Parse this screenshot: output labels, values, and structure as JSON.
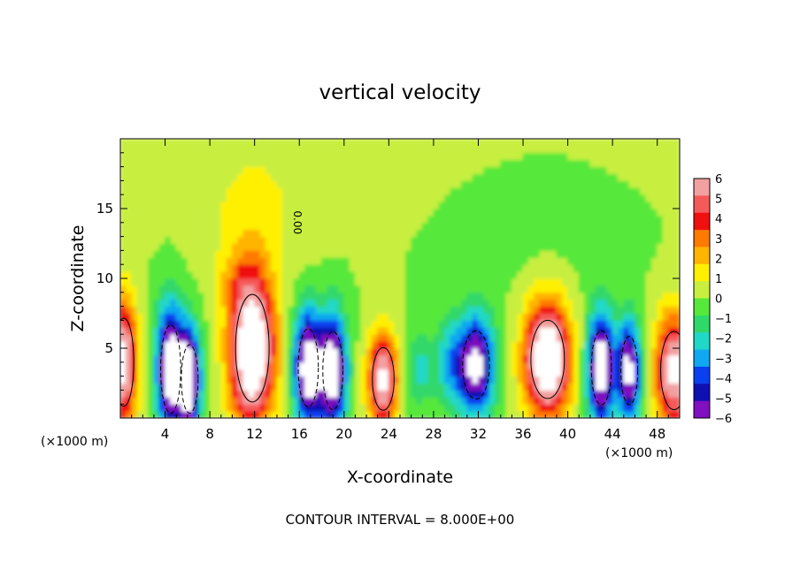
{
  "chart_data": {
    "type": "heatmap",
    "title": "vertical velocity",
    "xlabel": "X-coordinate",
    "ylabel": "Z-coordinate",
    "x_unit_left": "(×1000 m)",
    "x_unit_right": "(×1000 m)",
    "xlim": [
      0,
      50
    ],
    "ylim": [
      0,
      20
    ],
    "xticks": [
      "4",
      "8",
      "12",
      "16",
      "20",
      "24",
      "28",
      "32",
      "36",
      "40",
      "44",
      "48"
    ],
    "xtick_values": [
      4,
      8,
      12,
      16,
      20,
      24,
      28,
      32,
      36,
      40,
      44,
      48
    ],
    "yticks": [
      "5",
      "10",
      "15"
    ],
    "ytick_values": [
      5,
      10,
      15
    ],
    "colorbar": {
      "ticks": [
        "6",
        "5",
        "4",
        "3",
        "2",
        "1",
        "0",
        "−1",
        "−2",
        "−3",
        "−4",
        "−5",
        "−6"
      ],
      "values": [
        6,
        5,
        4,
        3,
        2,
        1,
        0,
        -1,
        -2,
        -3,
        -4,
        -5,
        -6
      ],
      "colors": [
        "#f2a0a0",
        "#f55a5a",
        "#f01010",
        "#ff7a00",
        "#ffb400",
        "#fff000",
        "#c8ef40",
        "#56e83a",
        "#30d86a",
        "#20d8c8",
        "#10a8f0",
        "#0a40f0",
        "#1010b0",
        "#8010c0"
      ]
    },
    "cells": [
      {
        "x": 0.3,
        "z": 4,
        "sx": 1.2,
        "sz": 4.5,
        "w": 7
      },
      {
        "x": 4.5,
        "z": 3.5,
        "sx": 1.2,
        "sz": 4.5,
        "w": -8
      },
      {
        "x": 6.2,
        "z": 2.8,
        "sx": 1.0,
        "sz": 3.5,
        "w": -8
      },
      {
        "x": 11.8,
        "z": 5.0,
        "sx": 2.0,
        "sz": 5.5,
        "w": 9
      },
      {
        "x": 16.8,
        "z": 3.6,
        "sx": 1.2,
        "sz": 4.0,
        "w": -8
      },
      {
        "x": 19.0,
        "z": 3.4,
        "sx": 1.2,
        "sz": 4.0,
        "w": -8
      },
      {
        "x": 23.5,
        "z": 2.8,
        "sx": 1.3,
        "sz": 3.2,
        "w": 7
      },
      {
        "x": 26.8,
        "z": 3.5,
        "sx": 1.3,
        "sz": 2.5,
        "w": -2
      },
      {
        "x": 29.5,
        "z": 4.0,
        "sx": 1.3,
        "sz": 3.0,
        "w": -2.5
      },
      {
        "x": 31.8,
        "z": 3.8,
        "sx": 1.6,
        "sz": 3.5,
        "w": -7
      },
      {
        "x": 38.2,
        "z": 4.2,
        "sx": 2.0,
        "sz": 4.0,
        "w": 9
      },
      {
        "x": 43.0,
        "z": 3.6,
        "sx": 1.2,
        "sz": 3.8,
        "w": -8
      },
      {
        "x": 45.5,
        "z": 3.4,
        "sx": 1.0,
        "sz": 3.5,
        "w": -7
      },
      {
        "x": 49.5,
        "z": 3.4,
        "sx": 1.6,
        "sz": 4.0,
        "w": 7
      },
      {
        "x": 12.0,
        "z": 15.0,
        "sx": 5.0,
        "sz": 5.0,
        "w": 1.0
      },
      {
        "x": 10.0,
        "z": 10.0,
        "sx": 1.5,
        "sz": 2.0,
        "w": 1.0
      },
      {
        "x": 38.0,
        "z": 14.0,
        "sx": 8.0,
        "sz": 5.0,
        "w": -0.3
      }
    ],
    "zero_contour_label": "0.00",
    "footer": "CONTOUR INTERVAL = 8.000E+00"
  }
}
